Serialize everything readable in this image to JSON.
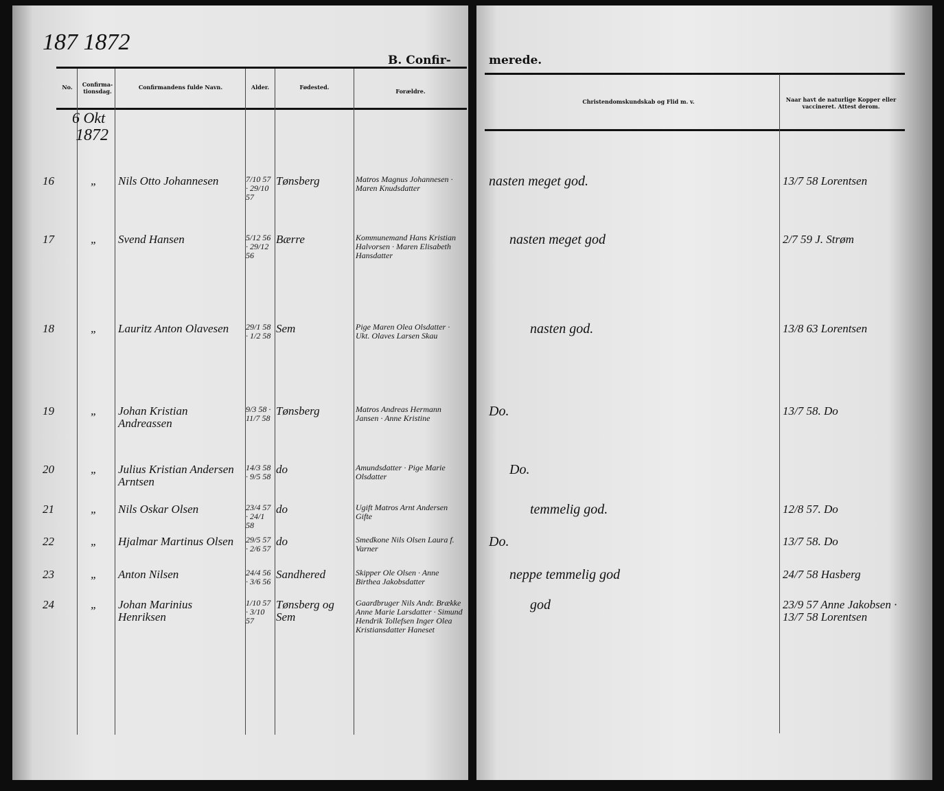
{
  "left_page": {
    "year_note": "187 1872",
    "title": "B. Confir-",
    "columns": [
      "No.",
      "Confirma-tionsdag.",
      "Confirmandens fulde Navn.",
      "Alder.",
      "Fødested.",
      "Forældre."
    ],
    "date_note": [
      "6 Okt",
      "1872"
    ]
  },
  "right_page": {
    "title": "merede.",
    "columns": [
      "Christendomskundskab og Flid m. v.",
      "Naar havt de naturlige Kopper eller vaccineret. Attest derom."
    ]
  },
  "entries": [
    {
      "no": "16",
      "day": "„",
      "name": "Nils Otto Johannesen",
      "age": "7/10 57 · 29/10 57",
      "birthplace": "Tønsberg",
      "parents": "Matros Magnus Johannesen · Maren Knudsdatter",
      "knowledge": "nasten meget god.",
      "vaccination": "13/7 58 Lorentsen"
    },
    {
      "no": "17",
      "day": "„",
      "name": "Svend Hansen",
      "age": "5/12 56 · 29/12 56",
      "birthplace": "Bærre",
      "parents": "Kommunemand Hans Kristian Halvorsen · Maren Elisabeth Hansdatter",
      "knowledge": "nasten meget god",
      "vaccination": "2/7 59 J. Strøm"
    },
    {
      "no": "18",
      "day": "„",
      "name": "Lauritz Anton Olavesen",
      "age": "29/1 58 · 1/2 58",
      "birthplace": "Sem",
      "parents": "Pige Maren Olea Olsdatter · Ukt. Olaves Larsen Skau",
      "knowledge": "nasten god.",
      "vaccination": "13/8 63 Lorentsen"
    },
    {
      "no": "19",
      "day": "„",
      "name": "Johan Kristian Andreassen",
      "age": "9/3 58 · 11/7 58",
      "birthplace": "Tønsberg",
      "parents": "Matros Andreas Hermann Jansen · Anne Kristine",
      "knowledge": "Do.",
      "vaccination": "13/7 58. Do"
    },
    {
      "no": "20",
      "day": "„",
      "name": "Julius Kristian Andersen Arntsen",
      "age": "14/3 58 · 9/5 58",
      "birthplace": "do",
      "parents": "Amundsdatter · Pige Marie Olsdatter",
      "knowledge": "Do.",
      "vaccination": ""
    },
    {
      "no": "21",
      "day": "„",
      "name": "Nils Oskar Olsen",
      "age": "23/4 57 · 24/1 58",
      "birthplace": "do",
      "parents": "Ugift Matros Arnt Andersen Gifte",
      "knowledge": "temmelig god.",
      "vaccination": "12/8 57. Do"
    },
    {
      "no": "22",
      "day": "„",
      "name": "Hjalmar Martinus Olsen",
      "age": "29/5 57 · 2/6 57",
      "birthplace": "do",
      "parents": "Smedkone Nils Olsen Laura f. Varner",
      "knowledge": "Do.",
      "vaccination": "13/7 58. Do"
    },
    {
      "no": "23",
      "day": "„",
      "name": "Anton Nilsen",
      "age": "24/4 56 · 3/6 56",
      "birthplace": "Sandhered",
      "parents": "Skipper Ole Olsen · Anne Birthea Jakobsdatter",
      "knowledge": "neppe temmelig god",
      "vaccination": "24/7 58 Hasberg"
    },
    {
      "no": "24",
      "day": "„",
      "name": "Johan Marinius Henriksen",
      "age": "1/10 57 · 3/10 57",
      "birthplace": "Tønsberg og Sem",
      "parents": "Gaardbruger Nils Andr. Brække Anne Marie Larsdatter · Simund Hendrik Tollefsen Inger Olea Kristiansdatter Haneset",
      "knowledge": "god",
      "vaccination": "23/9 57 Anne Jakobsen · 13/7 58 Lorentsen"
    }
  ]
}
